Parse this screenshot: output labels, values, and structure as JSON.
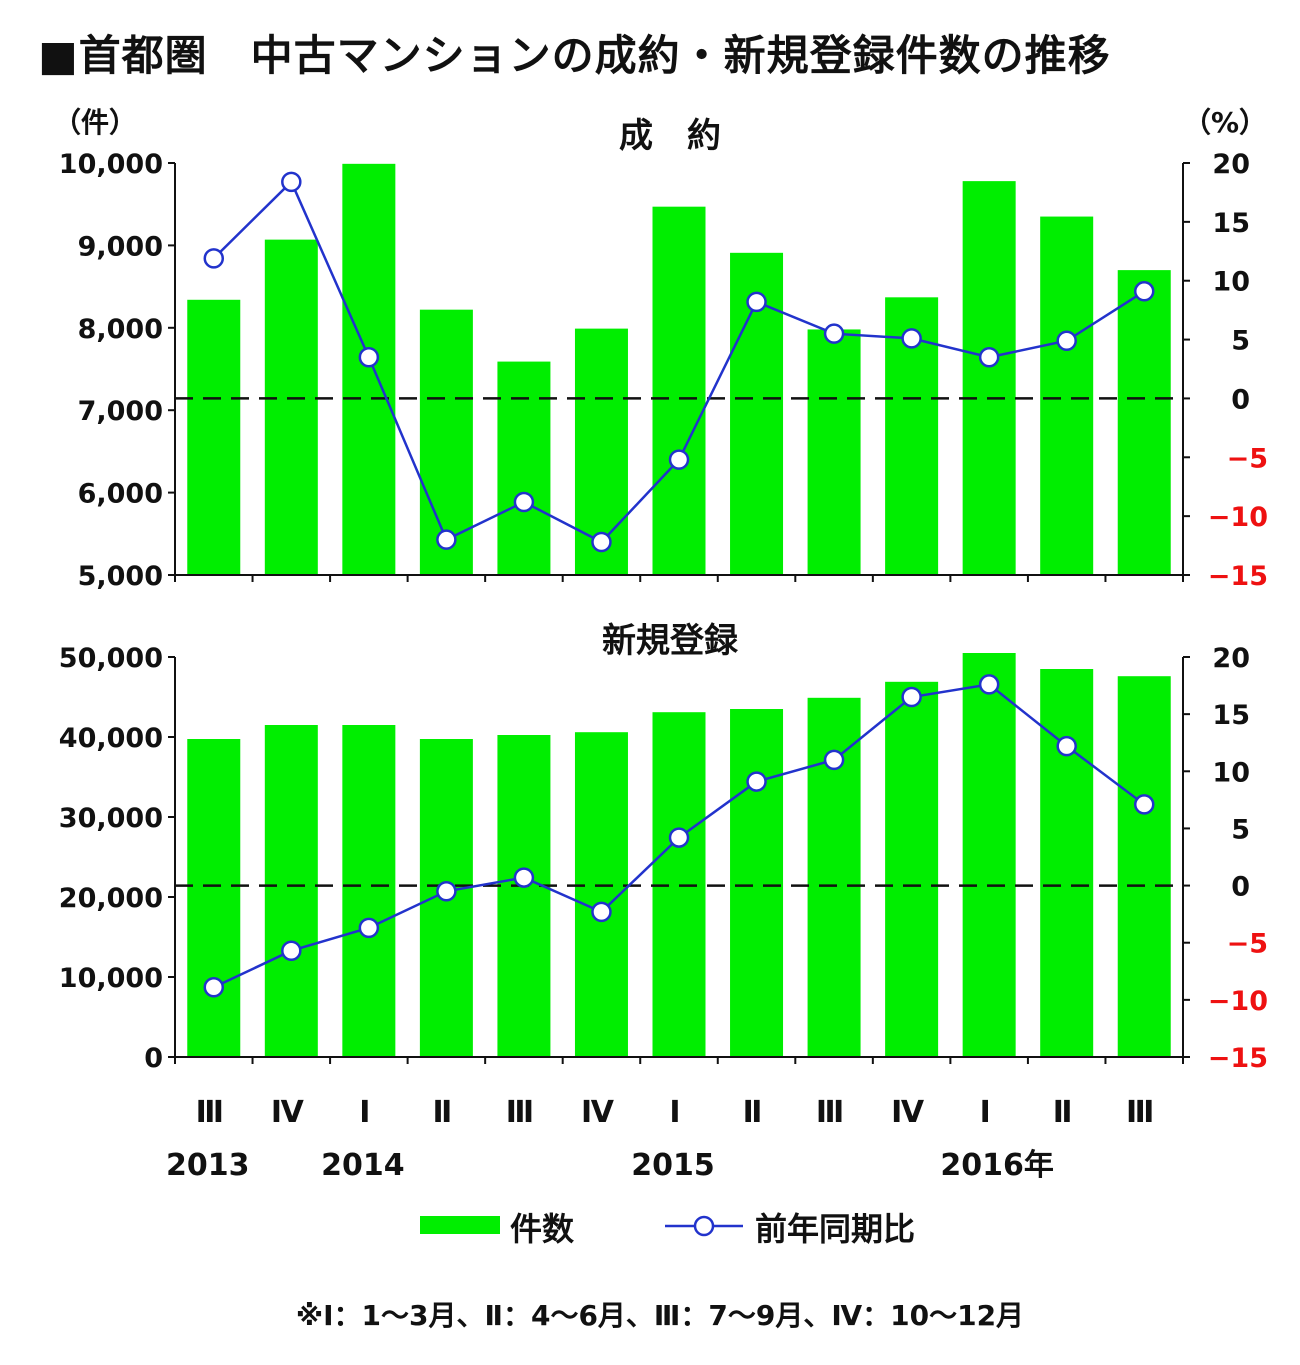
{
  "title": "■首都圏　中古マンションの成約・新規登録件数の推移",
  "chart_data": [
    {
      "type": "bar+line",
      "title": "成　約",
      "left_unit": "（件）",
      "right_unit": "（%）",
      "categories": [
        "Ⅲ",
        "Ⅳ",
        "Ⅰ",
        "Ⅱ",
        "Ⅲ",
        "Ⅳ",
        "Ⅰ",
        "Ⅱ",
        "Ⅲ",
        "Ⅳ",
        "Ⅰ",
        "Ⅱ",
        "Ⅲ"
      ],
      "series": [
        {
          "name": "件数",
          "axis": "left",
          "type": "bar",
          "color": "#00ee00",
          "values": [
            8340,
            9070,
            9990,
            8220,
            7590,
            7990,
            9470,
            8910,
            7980,
            8370,
            9780,
            9350,
            8700
          ]
        },
        {
          "name": "前年同期比",
          "axis": "right",
          "type": "line",
          "color": "#2233cc",
          "values": [
            11.9,
            18.4,
            3.5,
            -12.0,
            -8.8,
            -12.2,
            -5.2,
            8.2,
            5.5,
            5.1,
            3.5,
            4.9,
            9.1
          ]
        }
      ],
      "ylim_left": [
        5000,
        10000
      ],
      "yticks_left": [
        "5,000",
        "6,000",
        "7,000",
        "8,000",
        "9,000",
        "10,000"
      ],
      "ylim_right": [
        -15,
        20
      ],
      "yticks_right": [
        "−15",
        "−10",
        "−5",
        "0",
        "5",
        "10",
        "15",
        "20"
      ],
      "reference_line": 0
    },
    {
      "type": "bar+line",
      "title": "新規登録",
      "categories": [
        "Ⅲ",
        "Ⅳ",
        "Ⅰ",
        "Ⅱ",
        "Ⅲ",
        "Ⅳ",
        "Ⅰ",
        "Ⅱ",
        "Ⅲ",
        "Ⅳ",
        "Ⅰ",
        "Ⅱ",
        "Ⅲ"
      ],
      "series": [
        {
          "name": "件数",
          "axis": "left",
          "type": "bar",
          "color": "#00ee00",
          "values": [
            39750,
            41500,
            41500,
            39750,
            40250,
            40600,
            43100,
            43500,
            44900,
            46900,
            50500,
            48500,
            47600
          ]
        },
        {
          "name": "前年同期比",
          "axis": "right",
          "type": "line",
          "color": "#2233cc",
          "values": [
            -8.9,
            -5.7,
            -3.7,
            -0.5,
            0.7,
            -2.3,
            4.2,
            9.1,
            11.0,
            16.5,
            17.6,
            12.2,
            7.1
          ]
        }
      ],
      "ylim_left": [
        0,
        50000
      ],
      "yticks_left": [
        "0",
        "10,000",
        "20,000",
        "30,000",
        "40,000",
        "50,000"
      ],
      "ylim_right": [
        -15,
        20
      ],
      "yticks_right": [
        "−15",
        "−10",
        "−5",
        "0",
        "5",
        "10",
        "15",
        "20"
      ],
      "reference_line": 0
    }
  ],
  "x_axis": {
    "quarters": [
      "Ⅲ",
      "Ⅳ",
      "Ⅰ",
      "Ⅱ",
      "Ⅲ",
      "Ⅳ",
      "Ⅰ",
      "Ⅱ",
      "Ⅲ",
      "Ⅳ",
      "Ⅰ",
      "Ⅱ",
      "Ⅲ"
    ],
    "years": [
      {
        "label": "2013",
        "index": 0
      },
      {
        "label": "2014",
        "index": 2
      },
      {
        "label": "2015",
        "index": 6
      },
      {
        "label": "2016年",
        "index": 10
      }
    ]
  },
  "legend": {
    "bar": "件数",
    "line": "前年同期比"
  },
  "footnote": "※Ⅰ：1～3月、Ⅱ：4～6月、Ⅲ：7～9月、Ⅳ：10～12月"
}
